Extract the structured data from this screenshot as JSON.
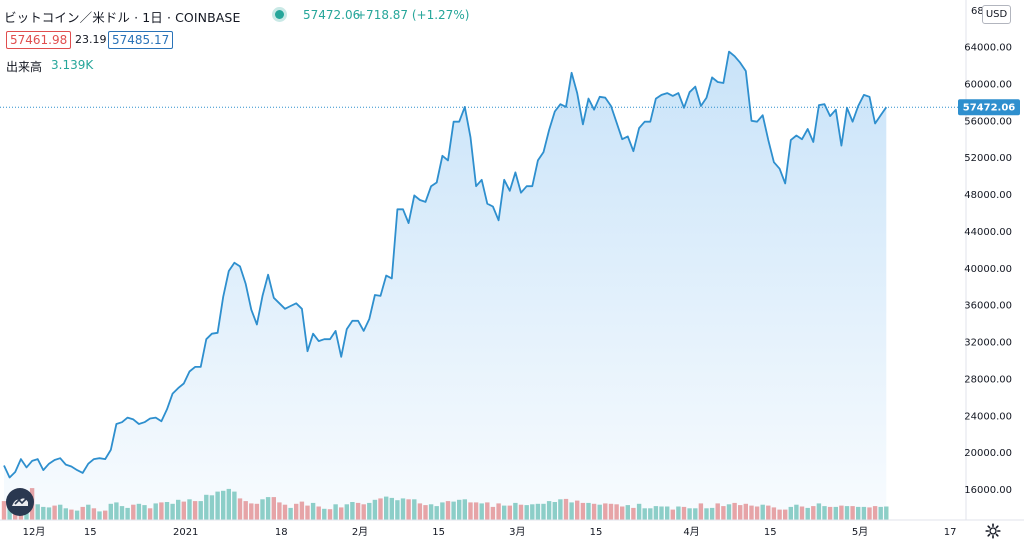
{
  "header": {
    "symbol_title": "ビットコイン／米ドル · 1日 · COINBASE",
    "last_price": "57472.06",
    "change": "+718.87 (+1.27%)",
    "bid": "57461.98",
    "spread": "23.19",
    "ask": "57485.17",
    "volume_label": "出来高",
    "volume_value": "3.139K",
    "currency": "USD"
  },
  "colors": {
    "line": "#2e8fce",
    "area_top": "rgba(86,168,235,0.35)",
    "vol_up": "#8fd0c6",
    "vol_down": "#eda4a4",
    "price_tag": "#2e8fce",
    "accent_up": "#26a69a",
    "accent_down": "#e04e4e"
  },
  "icons": {
    "logo": "tradingview-logo-icon",
    "settings": "gear-icon",
    "market_status": "market-open-dot-icon"
  },
  "chart_data": {
    "type": "line",
    "title": "ビットコイン／米ドル · 1日 · COINBASE",
    "xlabel": "",
    "ylabel": "",
    "ylim": [
      12000,
      68000
    ],
    "grid": false,
    "legend": "top-left",
    "y_ticks": [
      "64000.00",
      "60000.00",
      "56000.00",
      "52000.00",
      "48000.00",
      "44000.00",
      "40000.00",
      "36000.00",
      "32000.00",
      "28000.00",
      "24000.00",
      "20000.00",
      "16000.00"
    ],
    "y_tick_partial": "68",
    "x_ticks": [
      {
        "label": "12月",
        "day": 0
      },
      {
        "label": "15",
        "day": 10
      },
      {
        "label": "2021",
        "day": 27
      },
      {
        "label": "18",
        "day": 44
      },
      {
        "label": "2月",
        "day": 58
      },
      {
        "label": "15",
        "day": 72
      },
      {
        "label": "3月",
        "day": 86
      },
      {
        "label": "15",
        "day": 100
      },
      {
        "label": "4月",
        "day": 117
      },
      {
        "label": "15",
        "day": 131
      },
      {
        "label": "5月",
        "day": 147
      },
      {
        "label": "17",
        "day": 163
      }
    ],
    "current_price_label": "57472.06",
    "current_price": 57472.06,
    "series": [
      {
        "values": [
          18600,
          17300,
          17900,
          19300,
          18400,
          19100,
          19300,
          18100,
          18800,
          19200,
          19400,
          18700,
          18500,
          18100,
          17800,
          18800,
          19300,
          19400,
          19300,
          20300,
          23100,
          23300,
          23800,
          23600,
          23100,
          23300,
          23700,
          23800,
          23400,
          24700,
          26400,
          27000,
          27500,
          28800,
          29300,
          29300,
          32300,
          32900,
          33000,
          36900,
          39700,
          40600,
          40200,
          38300,
          35500,
          33900,
          37000,
          39300,
          36800,
          36200,
          35600,
          35900,
          36200,
          35600,
          31000,
          32900,
          32100,
          32300,
          32300,
          33200,
          30400,
          33400,
          34300,
          34300,
          33200,
          34500,
          37100,
          37000,
          39200,
          38900,
          46400,
          46400,
          44900,
          47900,
          47400,
          47200,
          48900,
          49300,
          52200,
          51700,
          55900,
          55900,
          57500,
          54200,
          48900,
          49600,
          47000,
          46700,
          45200,
          49600,
          48400,
          50400,
          48200,
          48900,
          48900,
          51700,
          52600,
          55000,
          57000,
          57800,
          57500,
          61200,
          59000,
          55600,
          58400,
          57200,
          58600,
          58500,
          57600,
          55800,
          54000,
          54300,
          52700,
          55200,
          55900,
          55900,
          58400,
          58800,
          59000,
          58700,
          59000,
          57400,
          59100,
          59700,
          57600,
          58500,
          60700,
          60200,
          60100,
          63500,
          63000,
          62300,
          61400,
          56000,
          55900,
          56600,
          53900,
          51500,
          50800,
          49200,
          53900,
          54400,
          54000,
          55100,
          53700,
          57700,
          57800,
          56500,
          57200,
          53300,
          57400,
          55900,
          57600,
          58800,
          58600,
          55700,
          56600,
          57472
        ]
      }
    ],
    "volume": {
      "ylim": [
        0,
        32000
      ],
      "values": [
        4200,
        3500,
        3000,
        3800,
        5500,
        7100,
        3500,
        2900,
        2800,
        3200,
        3400,
        2600,
        2300,
        2100,
        2900,
        3400,
        2600,
        1900,
        2100,
        3600,
        3900,
        3100,
        2700,
        3400,
        3600,
        3300,
        2600,
        3700,
        3900,
        4000,
        3600,
        4500,
        4100,
        4600,
        4200,
        4200,
        5600,
        5500,
        6300,
        6500,
        6900,
        6300,
        4800,
        4200,
        3700,
        3600,
        4600,
        5100,
        5100,
        3900,
        3400,
        2700,
        3600,
        4100,
        3200,
        3800,
        3000,
        2500,
        2400,
        3500,
        2800,
        3500,
        4000,
        3800,
        3500,
        3800,
        4500,
        4800,
        5200,
        4900,
        4400,
        4800,
        4600,
        4600,
        3700,
        3300,
        3500,
        3100,
        3900,
        4200,
        4100,
        4500,
        4600,
        3900,
        3900,
        3700,
        3900,
        2900,
        3700,
        3200,
        3200,
        3800,
        3400,
        3300,
        3500,
        3600,
        3600,
        4200,
        4000,
        4600,
        4700,
        3900,
        4300,
        3800,
        3800,
        3600,
        3400,
        3700,
        3600,
        3500,
        3000,
        3300,
        2700,
        3600,
        2600,
        2600,
        3100,
        3000,
        3000,
        2300,
        3000,
        2900,
        2600,
        2600,
        3700,
        2600,
        2700,
        3700,
        3100,
        3500,
        3800,
        3300,
        3600,
        3200,
        3000,
        3400,
        3200,
        2800,
        2300,
        2300,
        2900,
        3400,
        3000,
        2700,
        3100,
        3700,
        3100,
        2900,
        2900,
        3200,
        3100,
        3100,
        2900,
        2900,
        2800,
        3100,
        2900,
        3000
      ],
      "up": [
        0,
        1,
        0,
        0,
        1,
        0,
        1,
        1,
        1,
        0,
        1,
        1,
        0,
        1,
        0,
        1,
        0,
        1,
        0,
        1,
        1,
        1,
        1,
        0,
        1,
        1,
        0,
        1,
        0,
        1,
        1,
        1,
        0,
        1,
        0,
        1,
        1,
        1,
        1,
        1,
        1,
        1,
        0,
        0,
        0,
        0,
        1,
        1,
        0,
        0,
        0,
        1,
        0,
        0,
        0,
        1,
        0,
        1,
        0,
        1,
        0,
        1,
        1,
        0,
        0,
        1,
        1,
        0,
        1,
        1,
        1,
        1,
        0,
        1,
        0,
        0,
        1,
        1,
        1,
        0,
        1,
        1,
        1,
        0,
        0,
        1,
        0,
        0,
        0,
        1,
        0,
        1,
        0,
        1,
        1,
        1,
        1,
        1,
        1,
        1,
        0,
        1,
        0,
        0,
        1,
        0,
        1,
        0,
        0,
        0,
        0,
        1,
        0,
        1,
        1,
        1,
        1,
        1,
        1,
        0,
        1,
        0,
        1,
        1,
        0,
        1,
        1,
        0,
        0,
        1,
        0,
        0,
        0,
        0,
        0,
        1,
        0,
        0,
        0,
        0,
        1,
        1,
        0,
        1,
        0,
        1,
        1,
        0,
        1,
        0,
        1,
        0,
        1,
        1,
        0,
        0,
        1,
        1
      ]
    }
  }
}
